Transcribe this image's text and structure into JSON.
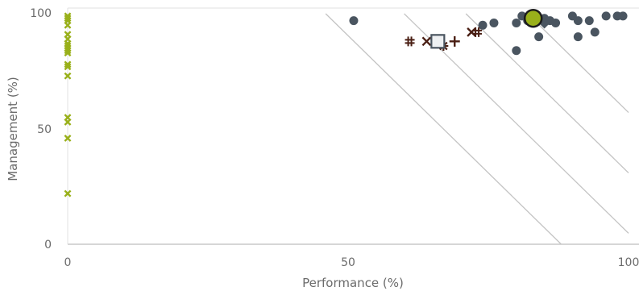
{
  "chart_data": {
    "type": "scatter",
    "xlabel": "Performance (%)",
    "ylabel": "Management (%)",
    "xlim": [
      0,
      102
    ],
    "ylim": [
      -2,
      102
    ],
    "x_ticks": [
      "0",
      "50",
      "100"
    ],
    "y_ticks": [
      "0",
      "50",
      "100"
    ],
    "grid": false,
    "legend": "none",
    "colors": {
      "others": "#4a5560",
      "zero_perf": "#99b01a",
      "peers": "#4a1f14",
      "highlight_fill": "#99b01a",
      "highlight_stroke": "#1b1b1b",
      "median_fill": "#eef0f2",
      "median_stroke": "#4a5560",
      "isolines": "#c4c4c4",
      "axis": "#c8c8c8"
    },
    "isolines": [
      {
        "x0": 46,
        "x1": 88
      },
      {
        "x0": 60,
        "x1": 100
      },
      {
        "x0": 71,
        "x1": 100
      },
      {
        "x0": 82,
        "x1": 100
      }
    ],
    "series": [
      {
        "marker": "circle",
        "points": [
          [
            51,
            97
          ],
          [
            74,
            95
          ],
          [
            76,
            96
          ],
          [
            80,
            96
          ],
          [
            80,
            84
          ],
          [
            81,
            99
          ],
          [
            82,
            97
          ],
          [
            83,
            98
          ],
          [
            84,
            90
          ],
          [
            85,
            98
          ],
          [
            86,
            97
          ],
          [
            87,
            96
          ],
          [
            90,
            99
          ],
          [
            91,
            97
          ],
          [
            91,
            90
          ],
          [
            93,
            97
          ],
          [
            94,
            92
          ],
          [
            96,
            99
          ],
          [
            98,
            99
          ],
          [
            99,
            99
          ]
        ]
      },
      {
        "marker": "x",
        "points": [
          [
            0,
            99
          ],
          [
            0,
            98
          ],
          [
            0,
            97
          ],
          [
            0,
            95
          ],
          [
            0,
            91
          ],
          [
            0,
            89
          ],
          [
            0,
            87
          ],
          [
            0,
            86
          ],
          [
            0,
            85
          ],
          [
            0,
            84
          ],
          [
            0,
            83
          ],
          [
            0,
            78
          ],
          [
            0,
            77
          ],
          [
            0,
            73
          ],
          [
            0,
            55
          ],
          [
            0,
            53
          ],
          [
            0,
            46
          ],
          [
            0,
            22
          ]
        ]
      },
      {
        "marker": "hash",
        "points": [
          [
            61,
            88
          ],
          [
            73,
            92
          ]
        ]
      },
      {
        "marker": "x",
        "points": [
          [
            64,
            88
          ],
          [
            72,
            92
          ]
        ]
      },
      {
        "marker": "asterisk",
        "points": [
          [
            67,
            86
          ]
        ]
      },
      {
        "marker": "plus",
        "points": [
          [
            69,
            88
          ]
        ]
      },
      {
        "marker": "diamond",
        "points": [
          [
            85,
            96
          ]
        ]
      },
      {
        "marker": "square",
        "points": [
          [
            66,
            88
          ]
        ]
      },
      {
        "marker": "big-circle",
        "points": [
          [
            83,
            98
          ]
        ]
      }
    ]
  }
}
